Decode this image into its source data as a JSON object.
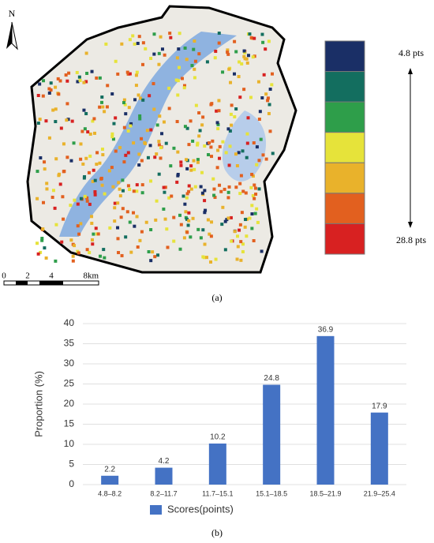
{
  "figure_a": {
    "north": "N",
    "legend": {
      "colors": [
        "#1a2f66",
        "#136e5f",
        "#2e9e4a",
        "#e6e33a",
        "#e9b22b",
        "#e2601f",
        "#d82121"
      ],
      "top_label": "4.8 pts",
      "bottom_label": "28.8 pts"
    },
    "scale": {
      "labels": [
        "0",
        "2",
        "4",
        "8km"
      ]
    },
    "caption": "(a)"
  },
  "chart_data": {
    "type": "bar",
    "ylabel": "Proportion (%)",
    "categories": [
      "4.8–8.2",
      "8.2–11.7",
      "11.7–15.1",
      "15.1–18.5",
      "18.5–21.9",
      "21.9–25.4"
    ],
    "series": [
      {
        "name": "Scores(points)",
        "color": "#4472c4",
        "values": [
          2.2,
          4.2,
          10.2,
          24.8,
          36.9,
          17.9
        ]
      }
    ],
    "ylim": [
      0,
      40
    ],
    "yticks": [
      0,
      5,
      10,
      15,
      20,
      25,
      30,
      35,
      40
    ],
    "grid": true,
    "legend": "bottom",
    "caption": "(b)"
  }
}
